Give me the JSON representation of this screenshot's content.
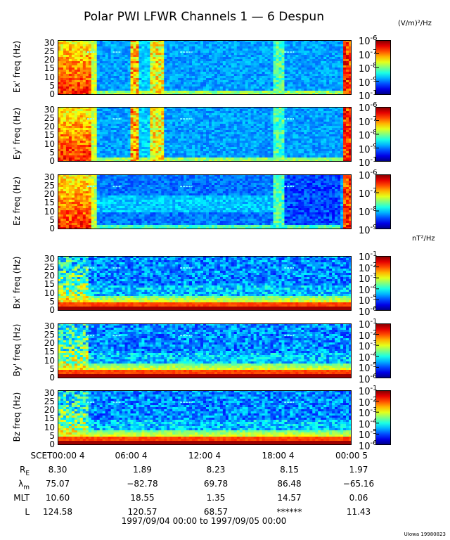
{
  "chart_data": {
    "type": "heatmap",
    "title": "Polar PWI LFWR Channels 1 — 6 Despun",
    "x_range_hours": [
      0,
      24
    ],
    "x_ticks": [
      {
        "hour": 0,
        "label": "SCET00:00   4"
      },
      {
        "hour": 6,
        "label": "06:00   4"
      },
      {
        "hour": 12,
        "label": "12:00   4"
      },
      {
        "hour": 18,
        "label": "18:00   4"
      },
      {
        "hour": 24,
        "label": "00:00   5"
      }
    ],
    "y_ticks": [
      "30",
      "25",
      "20",
      "15",
      "10",
      "5",
      "0"
    ],
    "y_range_hz": [
      0,
      32
    ],
    "panels": [
      {
        "ylabel": "Ex' freq (Hz)",
        "kind": "E",
        "cb_exponents": [
          "-6",
          "-7",
          "-8",
          "-9",
          "-10"
        ],
        "cb_base": "10"
      },
      {
        "ylabel": "Ey' freq (Hz)",
        "kind": "E",
        "cb_exponents": [
          "-6",
          "-7",
          "-8",
          "-9",
          "-10"
        ],
        "cb_base": "10"
      },
      {
        "ylabel": "Ez freq (Hz)",
        "kind": "Ez",
        "cb_exponents": [
          "-6",
          "-7",
          "-8",
          "-9"
        ],
        "cb_base": "10"
      },
      {
        "ylabel": "Bx' freq (Hz)",
        "kind": "B",
        "cb_exponents": [
          "-1",
          "-2",
          "-3",
          "-4",
          "-5",
          "-6"
        ],
        "cb_base": "10"
      },
      {
        "ylabel": "By' freq (Hz)",
        "kind": "B",
        "cb_exponents": [
          "-1",
          "-2",
          "-3",
          "-4",
          "-5",
          "-6"
        ],
        "cb_base": "10"
      },
      {
        "ylabel": "Bz freq (Hz)",
        "kind": "B",
        "cb_exponents": [
          "-1",
          "-2",
          "-3",
          "-4",
          "-5",
          "-6"
        ],
        "cb_base": "10"
      }
    ],
    "e_units": "(V/m)²/Hz",
    "b_units": "nT²/Hz",
    "ephemeris": [
      {
        "label": "R_E",
        "main": "R",
        "sub": "E",
        "values": [
          "8.30",
          "1.89",
          "8.23",
          "8.15",
          "1.97"
        ]
      },
      {
        "label": "lambda_m",
        "main": "λ",
        "sub": "m",
        "values": [
          "75.07",
          "−82.78",
          "69.78",
          "86.48",
          "−65.16"
        ]
      },
      {
        "label": "MLT",
        "main": "MLT",
        "sub": "",
        "values": [
          "10.60",
          "18.55",
          "1.35",
          "14.57",
          "0.06"
        ]
      },
      {
        "label": "L",
        "main": "L",
        "sub": "",
        "values": [
          "124.58",
          "120.57",
          "68.57",
          "******",
          "11.43"
        ]
      }
    ],
    "date_range": "1997/09/04 00:00 to 1997/09/05 00:00",
    "credit": "UIowa 19980823"
  }
}
